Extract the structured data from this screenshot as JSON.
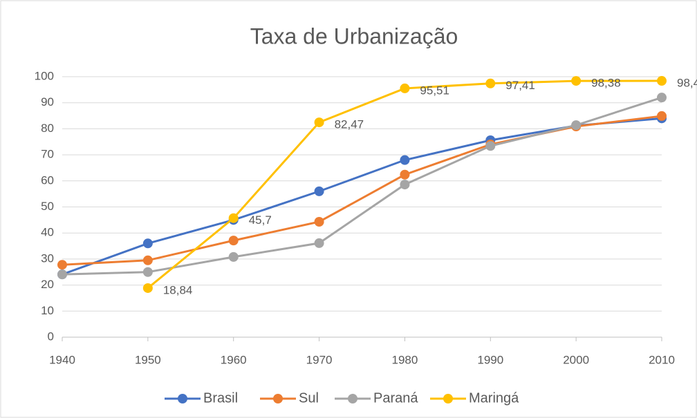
{
  "chart_data": {
    "type": "line",
    "title": "Taxa de Urbanização",
    "categories": [
      "1940",
      "1950",
      "1960",
      "1970",
      "1980",
      "1990",
      "2000",
      "2010"
    ],
    "series": [
      {
        "name": "Brasil",
        "color": "#4472c4",
        "values": [
          24.1,
          36,
          45,
          56,
          68,
          75.6,
          81.2,
          84
        ]
      },
      {
        "name": "Sul",
        "color": "#ed7d31",
        "values": [
          27.8,
          29.5,
          37.1,
          44.3,
          62.4,
          74,
          80.9,
          84.9
        ]
      },
      {
        "name": "Paraná",
        "color": "#a5a5a5",
        "values": [
          24.1,
          25,
          30.8,
          36.1,
          58.6,
          73.4,
          81.4,
          92
        ]
      },
      {
        "name": "Maringá",
        "color": "#ffc000",
        "values": [
          null,
          18.84,
          45.7,
          82.47,
          95.51,
          97.41,
          98.38,
          98.4
        ],
        "value_labels": [
          null,
          "18,84",
          "45,7",
          "82,47",
          "95,51",
          "97,41",
          "98,38",
          "98,4"
        ]
      }
    ],
    "ylim": [
      0,
      100
    ],
    "yticks": [
      0,
      10,
      20,
      30,
      40,
      50,
      60,
      70,
      80,
      90,
      100
    ],
    "grid": true,
    "legend": "bottom"
  }
}
